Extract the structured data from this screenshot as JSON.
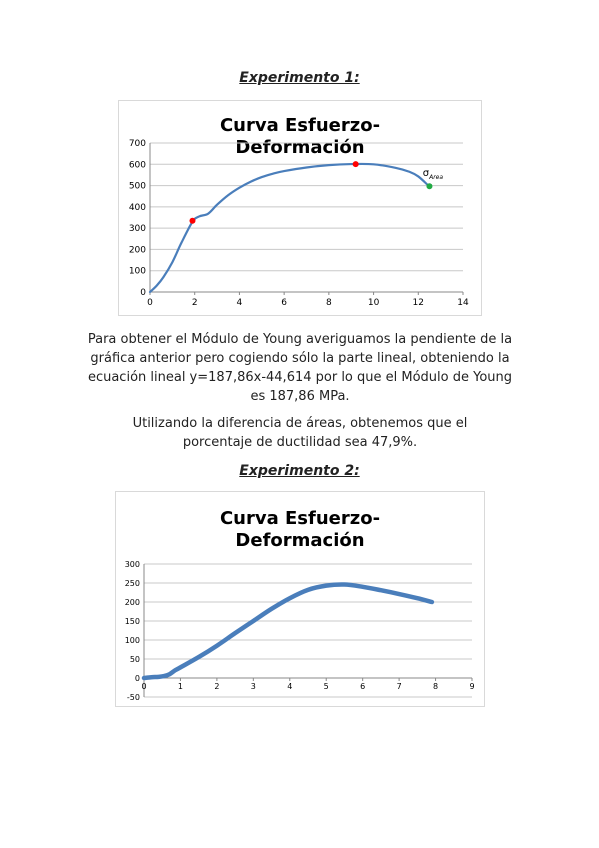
{
  "experiment1": {
    "heading": "Experimento 1:"
  },
  "experiment2": {
    "heading": "Experimento 2:"
  },
  "paragraphs": [
    "Para obtener el Módulo de Young averiguamos la pendiente de la gráfica anterior pero cogiendo sólo la parte lineal, obteniendo la ecuación lineal y=187,86x-44,614 por lo que el Módulo de Young es 187,86 MPa.",
    "Utilizando la diferencia de áreas, obtenemos que el porcentaje de ductilidad sea 47,9%."
  ],
  "chart_data": [
    {
      "type": "line",
      "title_lines": [
        "Curva Esfuerzo-",
        "Deformación"
      ],
      "xlabel": "",
      "ylabel": "",
      "xlim": [
        0,
        14
      ],
      "ylim": [
        0,
        700
      ],
      "x_ticks": [
        "0",
        "2",
        "4",
        "6",
        "8",
        "10",
        "12",
        "14"
      ],
      "y_ticks": [
        "0",
        "100",
        "200",
        "300",
        "400",
        "500",
        "600",
        "700"
      ],
      "grid": true,
      "line_color": "#4a7ebb",
      "series": [
        {
          "x": [
            0,
            0.3,
            0.6,
            1.0,
            1.4,
            1.9,
            2.2,
            2.6,
            3.0,
            3.5,
            4.0,
            4.5,
            5.0,
            5.5,
            6.0,
            7.0,
            8.0,
            9.0,
            10.0,
            11.0,
            11.6,
            12.0,
            12.4
          ],
          "y": [
            0,
            30,
            70,
            140,
            230,
            330,
            355,
            368,
            410,
            455,
            490,
            518,
            540,
            556,
            568,
            585,
            596,
            601,
            600,
            583,
            565,
            543,
            505
          ]
        }
      ],
      "markers": [
        {
          "x": 1.9,
          "y": 335,
          "color": "#ff0000"
        },
        {
          "x": 9.2,
          "y": 601,
          "color": "#ff0000"
        },
        {
          "x": 12.5,
          "y": 497,
          "color": "#22aa44"
        }
      ],
      "annotation": {
        "text": "σ",
        "subtext": "Area",
        "x": 12.2,
        "y": 545
      }
    },
    {
      "type": "line",
      "title_lines": [
        "Curva Esfuerzo-",
        "Deformación"
      ],
      "xlabel": "",
      "ylabel": "",
      "xlim": [
        0,
        9
      ],
      "ylim": [
        -50,
        300
      ],
      "x_ticks": [
        "0",
        "1",
        "2",
        "3",
        "4",
        "5",
        "6",
        "7",
        "8",
        "9"
      ],
      "y_ticks": [
        "-50",
        "0",
        "50",
        "100",
        "150",
        "200",
        "250",
        "300"
      ],
      "grid": true,
      "line_color": "#4a7ebb",
      "series": [
        {
          "x": [
            0,
            0.2,
            0.4,
            0.55,
            0.7,
            0.85,
            1.0,
            1.5,
            2.0,
            2.5,
            3.0,
            3.5,
            4.0,
            4.5,
            5.0,
            5.5,
            6.0,
            6.5,
            7.0,
            7.5,
            7.9
          ],
          "y": [
            0,
            2,
            3,
            5,
            10,
            20,
            28,
            55,
            85,
            118,
            150,
            182,
            210,
            232,
            243,
            246,
            240,
            231,
            221,
            210,
            200
          ]
        }
      ]
    }
  ]
}
